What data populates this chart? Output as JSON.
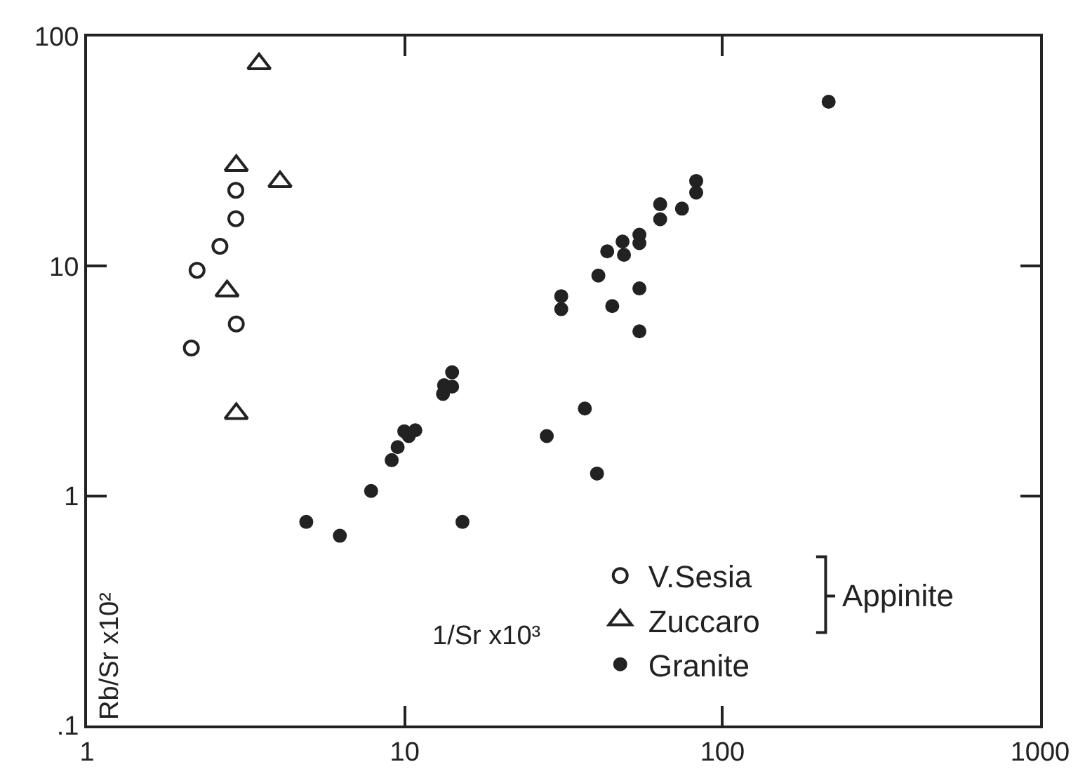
{
  "chart_data": {
    "type": "scatter",
    "xlabel": "1/Sr x10³",
    "ylabel": "Rb/Sr x10²",
    "log": "xy",
    "grid": false,
    "legend": "bottom right",
    "xlim": [
      1,
      1000
    ],
    "ylim": [
      0.1,
      100
    ],
    "xticks": [
      1,
      10,
      100,
      1000
    ],
    "yticks": [
      {
        "value": 0.1,
        "label": ".1"
      },
      1,
      10,
      100
    ],
    "annotations": [
      "Appinite"
    ],
    "series": [
      {
        "name": "V.Sesia",
        "color": "#222222",
        "marker": "circle",
        "x": [
          2.94,
          2.94,
          2.62,
          2.22,
          2.95,
          2.13
        ],
        "values": [
          21.4,
          16.1,
          12.2,
          9.6,
          5.6,
          4.4
        ]
      },
      {
        "name": "Zuccaro",
        "color": "#222222",
        "marker": "triangle",
        "x": [
          3.48,
          2.95,
          4.05,
          2.76,
          2.95
        ],
        "values": [
          76,
          27.4,
          23.3,
          7.8,
          2.28
        ]
      },
      {
        "name": "Granite",
        "color": "#222222",
        "marker": "circle",
        "x": [
          4.9,
          6.25,
          7.84,
          9.1,
          9.5,
          10.2,
          10.8,
          9.97,
          10.3,
          14.1,
          13.3,
          14.1,
          13.2,
          15.2,
          28,
          82.7,
          82.7,
          63.7,
          74.6,
          63.7,
          54.8,
          54.8,
          48.5,
          49,
          43.4,
          40.7,
          31.1,
          31.1,
          54.8,
          45,
          54.8,
          36.9,
          40.3,
          216
        ],
        "values": [
          0.77,
          0.67,
          1.05,
          1.43,
          1.63,
          null,
          1.93,
          1.91,
          1.82,
          3.45,
          3.03,
          2.99,
          2.78,
          0.77,
          1.82,
          23.5,
          20.9,
          18.6,
          17.8,
          16,
          13.7,
          12.6,
          12.8,
          11.2,
          11.6,
          9.1,
          7.4,
          6.5,
          8,
          6.7,
          5.2,
          2.4,
          1.25,
          52
        ]
      }
    ]
  }
}
